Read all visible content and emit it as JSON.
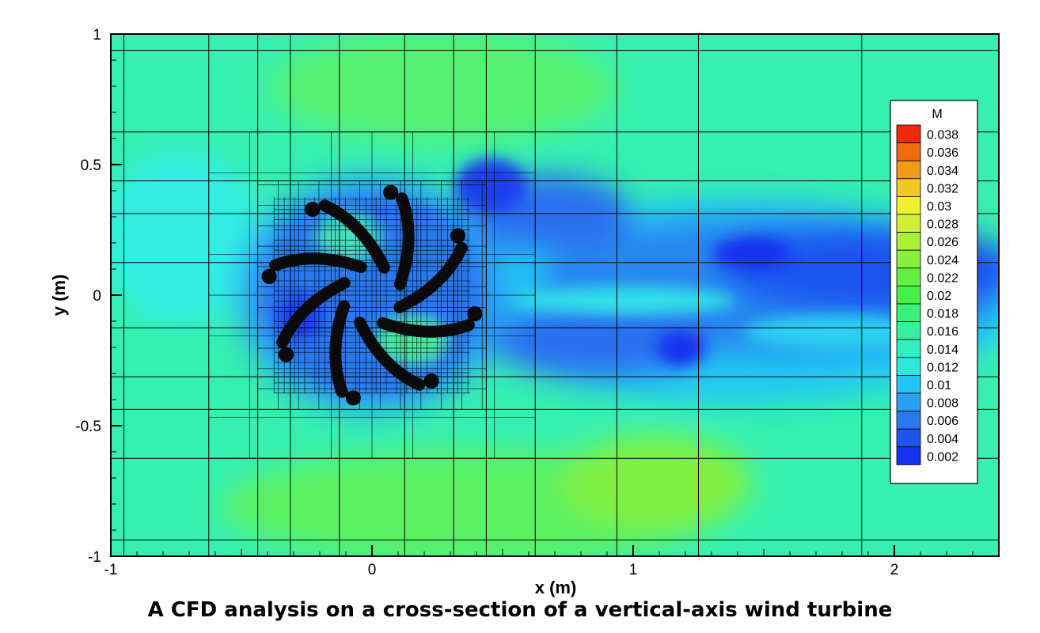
{
  "caption": "A CFD analysis on a cross-section of a vertical-axis wind turbine",
  "chart_data": {
    "type": "heatmap",
    "title": "",
    "xlabel": "x (m)",
    "ylabel": "y (m)",
    "xlim": [
      -1,
      2.4
    ],
    "ylim": [
      -1,
      1
    ],
    "x_ticks": [
      -1,
      0,
      1,
      2
    ],
    "x_tick_labels": [
      "-1",
      "0",
      "1",
      "2"
    ],
    "y_ticks": [
      -1,
      -0.5,
      0,
      0.5,
      1
    ],
    "y_tick_labels": [
      "-1",
      "-0.5",
      "0",
      "0.5",
      "1"
    ],
    "grid": true,
    "colorbar": {
      "title": "M",
      "placement": "right",
      "levels": [
        0.002,
        0.004,
        0.006,
        0.008,
        0.01,
        0.012,
        0.014,
        0.016,
        0.018,
        0.02,
        0.022,
        0.024,
        0.026,
        0.028,
        0.03,
        0.032,
        0.034,
        0.036,
        0.038
      ],
      "labels": [
        "0.002",
        "0.004",
        "0.006",
        "0.008",
        "0.01",
        "0.012",
        "0.014",
        "0.016",
        "0.018",
        "0.02",
        "0.022",
        "0.024",
        "0.026",
        "0.028",
        "0.03",
        "0.032",
        "0.034",
        "0.036",
        "0.038"
      ],
      "colors": [
        "#1432f0",
        "#1e55f0",
        "#2878f0",
        "#2aa0f5",
        "#22c8f5",
        "#2ee8e0",
        "#30f0c0",
        "#35f0a0",
        "#3cf07a",
        "#46f048",
        "#62f040",
        "#86f03c",
        "#aaf03a",
        "#d0f038",
        "#f0f030",
        "#f0c820",
        "#f09a18",
        "#f06a10",
        "#f02a0a"
      ]
    },
    "field_summary": {
      "freestream_M": 0.013,
      "wake_min_M": 0.003,
      "upper_lower_max_M": 0.021,
      "rotor_center": [
        0,
        0
      ],
      "rotor_radius": 0.4,
      "blade_count": 8
    },
    "mesh_lines_x": [
      -0.95,
      -0.625,
      -0.4375,
      -0.3125,
      -0.125,
      0.125,
      0.3125,
      0.4375,
      0.625,
      0.9375,
      1.25,
      1.875
    ],
    "mesh_lines_y": [
      -0.9375,
      -0.625,
      -0.4375,
      -0.3125,
      -0.125,
      0.125,
      0.3125,
      0.4375,
      0.625,
      0.9375
    ]
  }
}
